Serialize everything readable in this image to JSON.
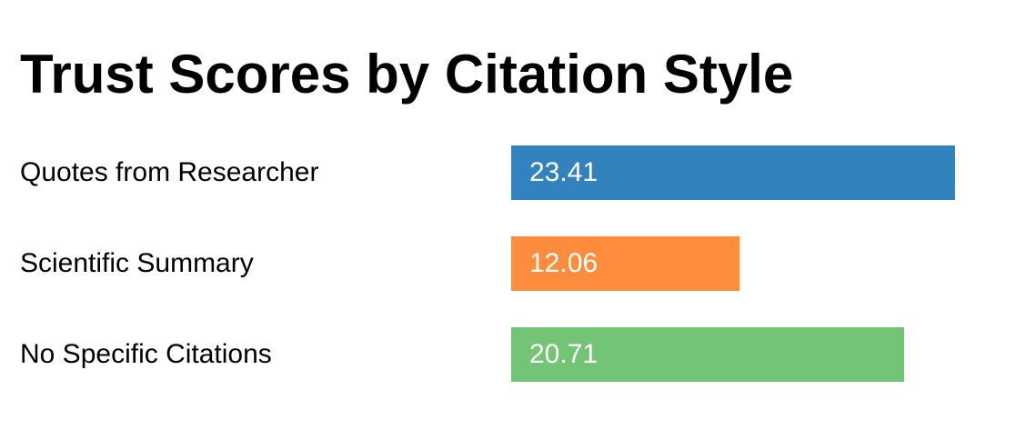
{
  "chart_data": {
    "type": "bar",
    "orientation": "horizontal",
    "title": "Trust Scores by Citation Style",
    "xlabel": "",
    "ylabel": "",
    "grid": false,
    "xlim": [
      0,
      23.41
    ],
    "categories": [
      "Quotes from Researcher",
      "Scientific Summary",
      "No Specific Citations"
    ],
    "values": [
      23.41,
      12.06,
      20.71
    ],
    "value_labels": [
      "23.41",
      "12.06",
      "20.71"
    ],
    "colors": [
      "#3182bd",
      "#fd8d3c",
      "#74c476"
    ]
  }
}
